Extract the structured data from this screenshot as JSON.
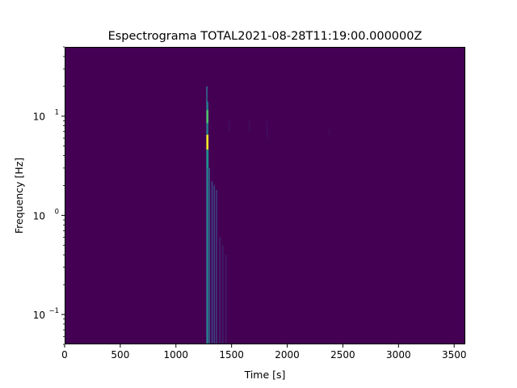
{
  "chart_data": {
    "type": "heatmap",
    "title": "Espectrograma TOTAL2021-08-28T11:19:00.000000Z",
    "xlabel": "Time [s]",
    "ylabel": "Frequency [Hz]",
    "xlim": [
      0,
      3600
    ],
    "ylim": [
      0.05,
      50
    ],
    "yscale": "log",
    "x_ticks": [
      0,
      500,
      1000,
      1500,
      2000,
      2500,
      3000,
      3500
    ],
    "x_tick_labels": [
      "0",
      "500",
      "1000",
      "1500",
      "2000",
      "2500",
      "3000",
      "3500"
    ],
    "y_major_ticks": [
      0.1,
      1,
      10
    ],
    "y_tick_labels": [
      {
        "base": "10",
        "exp": "−1"
      },
      {
        "base": "10",
        "exp": "0"
      },
      {
        "base": "10",
        "exp": "1"
      }
    ],
    "colormap": "viridis",
    "background_color": "#440154",
    "energy_features": [
      {
        "time": 1278,
        "fmin": 0.05,
        "fmax": 20,
        "intensity": 0.35
      },
      {
        "time": 1285,
        "fmin": 0.05,
        "fmax": 14,
        "intensity": 0.45
      },
      {
        "time": 1300,
        "fmin": 0.05,
        "fmax": 3,
        "intensity": 0.3
      },
      {
        "time": 1325,
        "fmin": 0.05,
        "fmax": 2.2,
        "intensity": 0.22
      },
      {
        "time": 1345,
        "fmin": 0.05,
        "fmax": 2,
        "intensity": 0.2
      },
      {
        "time": 1365,
        "fmin": 0.05,
        "fmax": 1.8,
        "intensity": 0.18
      },
      {
        "time": 1395,
        "fmin": 0.05,
        "fmax": 0.6,
        "intensity": 0.12
      },
      {
        "time": 1420,
        "fmin": 0.05,
        "fmax": 0.5,
        "intensity": 0.1
      },
      {
        "time": 1450,
        "fmin": 0.05,
        "fmax": 0.4,
        "intensity": 0.08
      }
    ],
    "hot_spots": [
      {
        "time": 1283,
        "fmin": 8.5,
        "fmax": 11.5,
        "intensity": 0.7
      },
      {
        "time": 1283,
        "fmin": 4.6,
        "fmax": 6.5,
        "intensity": 1.0
      },
      {
        "time": 1284,
        "fmin": 3.0,
        "fmax": 4.6,
        "intensity": 0.5
      }
    ],
    "faint_features": [
      {
        "time": 1480,
        "fmin": 7,
        "fmax": 9,
        "intensity": 0.05
      },
      {
        "time": 1660,
        "fmin": 7,
        "fmax": 9,
        "intensity": 0.05
      },
      {
        "time": 1820,
        "fmin": 6,
        "fmax": 9,
        "intensity": 0.05
      },
      {
        "time": 2380,
        "fmin": 6.5,
        "fmax": 7.5,
        "intensity": 0.04
      }
    ]
  }
}
